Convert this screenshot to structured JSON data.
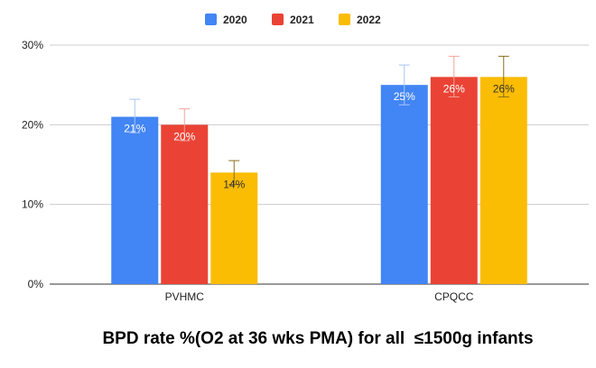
{
  "chart_data": {
    "type": "bar",
    "title": "BPD rate %(O2 at 36 wks PMA) for all  ≤1500g infants",
    "categories": [
      "PVHMC",
      "CPQCC"
    ],
    "series": [
      {
        "name": "2020",
        "color": "#4285f4",
        "label_color": "#ffffff",
        "values": [
          21,
          25
        ],
        "error": [
          [
            19,
            23.2
          ],
          [
            22.5,
            27.5
          ]
        ],
        "labels": [
          "21%",
          "25%"
        ]
      },
      {
        "name": "2021",
        "color": "#ea4335",
        "label_color": "#ffffff",
        "values": [
          20,
          26
        ],
        "error": [
          [
            18,
            22
          ],
          [
            23.5,
            28.6
          ]
        ],
        "labels": [
          "20%",
          "26%"
        ]
      },
      {
        "name": "2022",
        "color": "#fbbc04",
        "label_color": "#333333",
        "values": [
          14,
          26
        ],
        "error": [
          [
            12.5,
            15.5
          ],
          [
            23.5,
            28.6
          ]
        ],
        "labels": [
          "14%",
          "26%"
        ]
      }
    ],
    "ylim": [
      0,
      30
    ],
    "yticks": [
      0,
      10,
      20,
      30
    ],
    "ytick_labels": [
      "0%",
      "10%",
      "20%",
      "30%"
    ],
    "xlabel": "",
    "ylabel": "",
    "grid": true,
    "legend_position": "top-center"
  }
}
